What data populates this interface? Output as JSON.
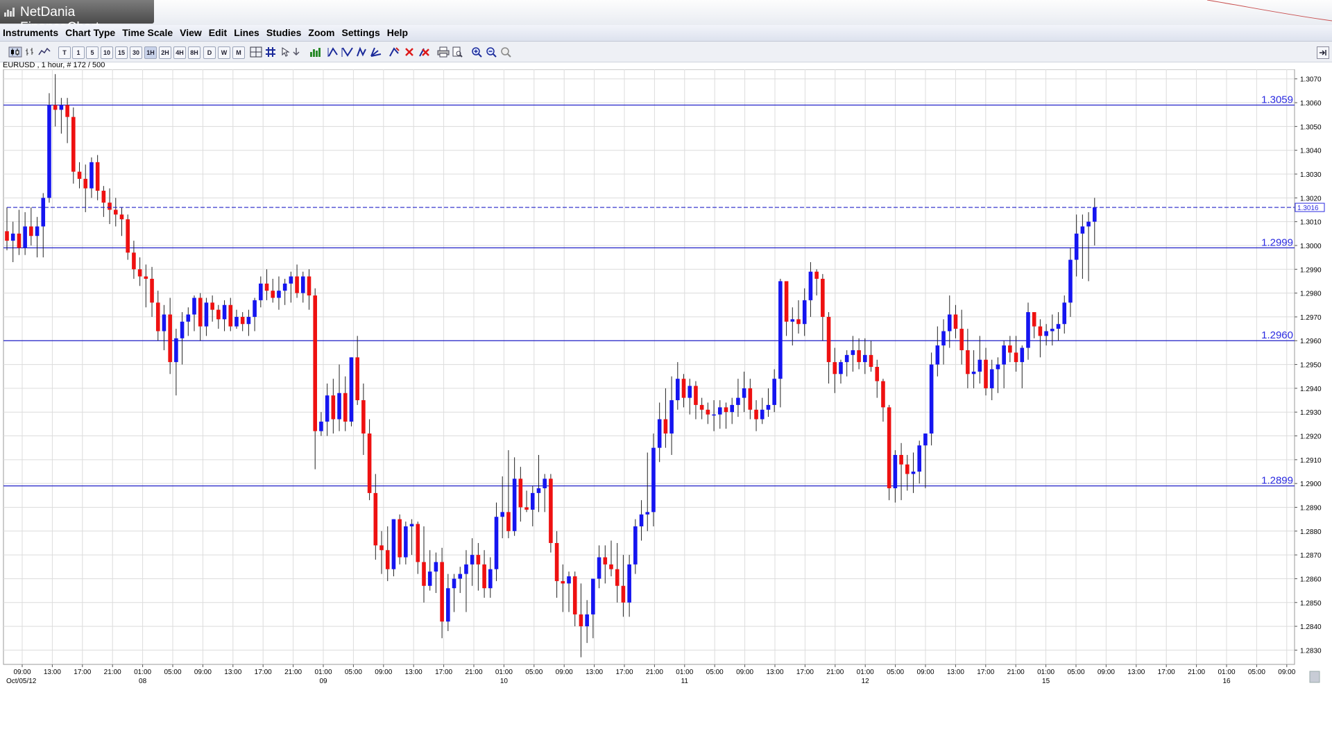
{
  "window": {
    "title": "NetDania FinanceChart"
  },
  "menu": [
    "Instruments",
    "Chart Type",
    "Time Scale",
    "View",
    "Edit",
    "Lines",
    "Studies",
    "Zoom",
    "Settings",
    "Help"
  ],
  "toolbar": {
    "timeframes": [
      "T",
      "1",
      "5",
      "10",
      "15",
      "30",
      "1H",
      "2H",
      "4H",
      "8H",
      "D",
      "W",
      "M"
    ],
    "active_timeframe": "1H"
  },
  "status": "EURUSD , 1 hour, # 172 / 500",
  "colors": {
    "up": "#1515f0",
    "down": "#ee1111",
    "line": "#2020c8",
    "grid": "#dcdcdc"
  },
  "chart_data": {
    "type": "candlestick",
    "symbol": "EURUSD",
    "interval": "1 hour",
    "ylim": [
      1.2824,
      1.3074
    ],
    "yticks": [
      "1.3070",
      "1.3060",
      "1.3050",
      "1.3040",
      "1.3030",
      "1.3020",
      "1.3010",
      "1.3000",
      "1.2990",
      "1.2980",
      "1.2970",
      "1.2960",
      "1.2950",
      "1.2940",
      "1.2930",
      "1.2920",
      "1.2910",
      "1.2900",
      "1.2890",
      "1.2880",
      "1.2870",
      "1.2860",
      "1.2850",
      "1.2840",
      "1.2830"
    ],
    "xticks": [
      "09:00",
      "13:00",
      "17:00",
      "21:00",
      "01:00",
      "05:00",
      "09:00",
      "13:00",
      "17:00",
      "21:00",
      "01:00",
      "05:00",
      "09:00",
      "13:00",
      "17:00",
      "21:00",
      "01:00",
      "05:00",
      "09:00",
      "13:00",
      "17:00",
      "21:00",
      "01:00",
      "05:00",
      "09:00",
      "13:00",
      "17:00",
      "21:00",
      "01:00",
      "05:00",
      "09:00",
      "13:00",
      "17:00",
      "21:00",
      "01:00",
      "05:00",
      "09:00",
      "13:00",
      "17:00",
      "21:00",
      "01:00",
      "05:00",
      "09:00"
    ],
    "date_labels": [
      {
        "text": "Oct/05/12",
        "at": 0
      },
      {
        "text": "08",
        "at": 4
      },
      {
        "text": "09",
        "at": 10
      },
      {
        "text": "10",
        "at": 16
      },
      {
        "text": "11",
        "at": 22
      },
      {
        "text": "12",
        "at": 28
      },
      {
        "text": "15",
        "at": 34
      },
      {
        "text": "16",
        "at": 40
      }
    ],
    "hlines": [
      {
        "value": 1.3059,
        "label": "1.3059"
      },
      {
        "value": 1.2999,
        "label": "1.2999"
      },
      {
        "value": 1.296,
        "label": "1.2960"
      },
      {
        "value": 1.2899,
        "label": "1.2899"
      }
    ],
    "last_price": {
      "value": 1.3016,
      "label": "1.3016"
    },
    "candles_ohlc": [
      [
        1.3006,
        1.3016,
        1.2998,
        1.3002
      ],
      [
        1.3002,
        1.301,
        1.2993,
        1.3005
      ],
      [
        1.3005,
        1.3015,
        1.2996,
        1.2999
      ],
      [
        1.2999,
        1.3014,
        1.2996,
        1.3008
      ],
      [
        1.3008,
        1.3016,
        1.3,
        1.3004
      ],
      [
        1.3004,
        1.3012,
        1.2995,
        1.3008
      ],
      [
        1.3008,
        1.3022,
        1.2995,
        1.302
      ],
      [
        1.302,
        1.3064,
        1.3018,
        1.3059
      ],
      [
        1.3059,
        1.3072,
        1.305,
        1.3057
      ],
      [
        1.3057,
        1.3062,
        1.3047,
        1.3059
      ],
      [
        1.3059,
        1.3062,
        1.3043,
        1.3054
      ],
      [
        1.3054,
        1.3058,
        1.3026,
        1.3031
      ],
      [
        1.3031,
        1.3035,
        1.3024,
        1.3028
      ],
      [
        1.3028,
        1.3034,
        1.3014,
        1.3024
      ],
      [
        1.3024,
        1.3037,
        1.302,
        1.3035
      ],
      [
        1.3035,
        1.3038,
        1.3019,
        1.3023
      ],
      [
        1.3023,
        1.3025,
        1.3012,
        1.3018
      ],
      [
        1.3018,
        1.3024,
        1.3009,
        1.3015
      ],
      [
        1.3015,
        1.302,
        1.3008,
        1.3013
      ],
      [
        1.3013,
        1.3016,
        1.3004,
        1.3011
      ],
      [
        1.3011,
        1.3013,
        1.2994,
        1.2997
      ],
      [
        1.2997,
        1.3002,
        1.2986,
        1.299
      ],
      [
        1.299,
        1.2995,
        1.2983,
        1.2987
      ],
      [
        1.2987,
        1.2992,
        1.2974,
        1.2986
      ],
      [
        1.2986,
        1.2991,
        1.297,
        1.2976
      ],
      [
        1.2976,
        1.2981,
        1.296,
        1.2964
      ],
      [
        1.2964,
        1.2975,
        1.2956,
        1.2971
      ],
      [
        1.2971,
        1.2978,
        1.2946,
        1.2951
      ],
      [
        1.2951,
        1.2965,
        1.2937,
        1.2961
      ],
      [
        1.2961,
        1.2972,
        1.295,
        1.2968
      ],
      [
        1.2968,
        1.2974,
        1.2962,
        1.2971
      ],
      [
        1.2971,
        1.2979,
        1.2964,
        1.2978
      ],
      [
        1.2978,
        1.298,
        1.296,
        1.2966
      ],
      [
        1.2966,
        1.2978,
        1.2962,
        1.2976
      ],
      [
        1.2976,
        1.2979,
        1.2968,
        1.2973
      ],
      [
        1.2973,
        1.2975,
        1.2965,
        1.2969
      ],
      [
        1.2969,
        1.2977,
        1.2964,
        1.2975
      ],
      [
        1.2975,
        1.2978,
        1.2964,
        1.2966
      ],
      [
        1.2966,
        1.2973,
        1.2965,
        1.297
      ],
      [
        1.297,
        1.2972,
        1.2964,
        1.2967
      ],
      [
        1.2967,
        1.2973,
        1.2962,
        1.297
      ],
      [
        1.297,
        1.2978,
        1.2964,
        1.2977
      ],
      [
        1.2977,
        1.2987,
        1.2974,
        1.2984
      ],
      [
        1.2984,
        1.299,
        1.2977,
        1.2981
      ],
      [
        1.2981,
        1.2986,
        1.2976,
        1.2978
      ],
      [
        1.2978,
        1.2987,
        1.2973,
        1.2981
      ],
      [
        1.2981,
        1.2986,
        1.2975,
        1.2984
      ],
      [
        1.2984,
        1.2989,
        1.2976,
        1.2987
      ],
      [
        1.2987,
        1.2992,
        1.2978,
        1.298
      ],
      [
        1.298,
        1.2989,
        1.2976,
        1.2987
      ],
      [
        1.2987,
        1.299,
        1.2973,
        1.2979
      ],
      [
        1.2979,
        1.2982,
        1.2906,
        1.2922
      ],
      [
        1.2922,
        1.293,
        1.292,
        1.2926
      ],
      [
        1.2926,
        1.2942,
        1.292,
        1.2937
      ],
      [
        1.2937,
        1.2944,
        1.2921,
        1.2927
      ],
      [
        1.2927,
        1.295,
        1.2922,
        1.2938
      ],
      [
        1.2938,
        1.2945,
        1.2922,
        1.2926
      ],
      [
        1.2926,
        1.2953,
        1.2924,
        1.2953
      ],
      [
        1.2953,
        1.2962,
        1.2933,
        1.2935
      ],
      [
        1.2935,
        1.2942,
        1.2912,
        1.2921
      ],
      [
        1.2921,
        1.2927,
        1.2893,
        1.2896
      ],
      [
        1.2896,
        1.2904,
        1.2868,
        1.2874
      ],
      [
        1.2874,
        1.288,
        1.2862,
        1.2872
      ],
      [
        1.2872,
        1.2882,
        1.2859,
        1.2864
      ],
      [
        1.2864,
        1.2885,
        1.2861,
        1.2885
      ],
      [
        1.2885,
        1.2887,
        1.2866,
        1.2869
      ],
      [
        1.2869,
        1.2884,
        1.2866,
        1.2882
      ],
      [
        1.2882,
        1.2885,
        1.287,
        1.2883
      ],
      [
        1.2883,
        1.2884,
        1.2862,
        1.2867
      ],
      [
        1.2867,
        1.2882,
        1.285,
        1.2857
      ],
      [
        1.2857,
        1.2872,
        1.2855,
        1.2863
      ],
      [
        1.2863,
        1.2871,
        1.2854,
        1.2867
      ],
      [
        1.2867,
        1.2873,
        1.2835,
        1.2842
      ],
      [
        1.2842,
        1.2862,
        1.2838,
        1.2856
      ],
      [
        1.2856,
        1.2862,
        1.2846,
        1.286
      ],
      [
        1.286,
        1.2865,
        1.2854,
        1.2862
      ],
      [
        1.2862,
        1.2872,
        1.2846,
        1.2866
      ],
      [
        1.2866,
        1.2877,
        1.2857,
        1.287
      ],
      [
        1.287,
        1.2875,
        1.2855,
        1.2866
      ],
      [
        1.2866,
        1.2872,
        1.2852,
        1.2856
      ],
      [
        1.2856,
        1.2869,
        1.2852,
        1.2864
      ],
      [
        1.2864,
        1.2892,
        1.2859,
        1.2886
      ],
      [
        1.2886,
        1.2903,
        1.2877,
        1.2888
      ],
      [
        1.2888,
        1.2914,
        1.2877,
        1.288
      ],
      [
        1.288,
        1.2911,
        1.2878,
        1.2902
      ],
      [
        1.2902,
        1.2907,
        1.2884,
        1.289
      ],
      [
        1.289,
        1.2897,
        1.2888,
        1.2889
      ],
      [
        1.2889,
        1.2899,
        1.2882,
        1.2896
      ],
      [
        1.2896,
        1.2912,
        1.2888,
        1.2898
      ],
      [
        1.2898,
        1.2904,
        1.2888,
        1.2902
      ],
      [
        1.2902,
        1.2904,
        1.2871,
        1.2875
      ],
      [
        1.2875,
        1.288,
        1.2852,
        1.2859
      ],
      [
        1.2859,
        1.2866,
        1.2846,
        1.2858
      ],
      [
        1.2858,
        1.2863,
        1.2846,
        1.2861
      ],
      [
        1.2861,
        1.2863,
        1.284,
        1.2845
      ],
      [
        1.2845,
        1.2858,
        1.2827,
        1.284
      ],
      [
        1.284,
        1.2851,
        1.2833,
        1.2845
      ],
      [
        1.2845,
        1.2858,
        1.2835,
        1.286
      ],
      [
        1.286,
        1.2874,
        1.2856,
        1.2869
      ],
      [
        1.2869,
        1.2874,
        1.2858,
        1.2866
      ],
      [
        1.2866,
        1.2876,
        1.2861,
        1.2864
      ],
      [
        1.2864,
        1.2875,
        1.285,
        1.2857
      ],
      [
        1.2857,
        1.287,
        1.2844,
        1.285
      ],
      [
        1.285,
        1.287,
        1.2844,
        1.2866
      ],
      [
        1.2866,
        1.2885,
        1.2862,
        1.2882
      ],
      [
        1.2882,
        1.2893,
        1.2876,
        1.2887
      ],
      [
        1.2887,
        1.2913,
        1.288,
        1.2888
      ],
      [
        1.2888,
        1.2921,
        1.2882,
        1.2915
      ],
      [
        1.2915,
        1.2934,
        1.2909,
        1.2927
      ],
      [
        1.2927,
        1.294,
        1.2915,
        1.2921
      ],
      [
        1.2921,
        1.2945,
        1.2912,
        1.2935
      ],
      [
        1.2935,
        1.2951,
        1.2931,
        1.2944
      ],
      [
        1.2944,
        1.2946,
        1.2932,
        1.2936
      ],
      [
        1.2936,
        1.2944,
        1.2929,
        1.2941
      ],
      [
        1.2941,
        1.2943,
        1.2927,
        1.2933
      ],
      [
        1.2933,
        1.2936,
        1.2927,
        1.2931
      ],
      [
        1.2931,
        1.2934,
        1.2925,
        1.2929
      ],
      [
        1.2929,
        1.2935,
        1.2922,
        1.2929
      ],
      [
        1.2929,
        1.2935,
        1.2923,
        1.2932
      ],
      [
        1.2932,
        1.2934,
        1.2923,
        1.293
      ],
      [
        1.293,
        1.2936,
        1.2925,
        1.2933
      ],
      [
        1.2933,
        1.2944,
        1.2928,
        1.2936
      ],
      [
        1.2936,
        1.2947,
        1.293,
        1.294
      ],
      [
        1.294,
        1.2944,
        1.2927,
        1.2931
      ],
      [
        1.2931,
        1.2935,
        1.2922,
        1.2927
      ],
      [
        1.2927,
        1.2936,
        1.2925,
        1.2931
      ],
      [
        1.2931,
        1.294,
        1.2928,
        1.2933
      ],
      [
        1.2933,
        1.2948,
        1.293,
        1.2944
      ],
      [
        1.2944,
        1.2986,
        1.2932,
        1.2985
      ],
      [
        1.2985,
        1.2984,
        1.2962,
        1.2968
      ],
      [
        1.2968,
        1.2974,
        1.2958,
        1.2969
      ],
      [
        1.2969,
        1.2977,
        1.2963,
        1.2967
      ],
      [
        1.2967,
        1.2982,
        1.2962,
        1.2977
      ],
      [
        1.2977,
        1.2993,
        1.297,
        1.2989
      ],
      [
        1.2989,
        1.299,
        1.2979,
        1.2986
      ],
      [
        1.2986,
        1.2988,
        1.296,
        1.297
      ],
      [
        1.297,
        1.2972,
        1.2942,
        1.2951
      ],
      [
        1.2951,
        1.2957,
        1.2938,
        1.2946
      ],
      [
        1.2946,
        1.2952,
        1.2942,
        1.2951
      ],
      [
        1.2951,
        1.2956,
        1.2945,
        1.2954
      ],
      [
        1.2954,
        1.2962,
        1.2947,
        1.2956
      ],
      [
        1.2956,
        1.2961,
        1.2948,
        1.2951
      ],
      [
        1.2951,
        1.2961,
        1.2946,
        1.2954
      ],
      [
        1.2954,
        1.296,
        1.2947,
        1.2949
      ],
      [
        1.2949,
        1.2952,
        1.2936,
        1.2943
      ],
      [
        1.2943,
        1.2944,
        1.2926,
        1.2932
      ],
      [
        1.2932,
        1.2933,
        1.2893,
        1.2898
      ],
      [
        1.2898,
        1.2914,
        1.2892,
        1.2912
      ],
      [
        1.2912,
        1.2917,
        1.2893,
        1.2908
      ],
      [
        1.2908,
        1.2912,
        1.2897,
        1.2904
      ],
      [
        1.2904,
        1.2913,
        1.2896,
        1.2905
      ],
      [
        1.2905,
        1.2918,
        1.29,
        1.2916
      ],
      [
        1.2916,
        1.292,
        1.2898,
        1.2921
      ],
      [
        1.2921,
        1.2955,
        1.2916,
        1.295
      ],
      [
        1.295,
        1.2966,
        1.2945,
        1.2958
      ],
      [
        1.2958,
        1.2969,
        1.295,
        1.2964
      ],
      [
        1.2964,
        1.2979,
        1.2957,
        1.2971
      ],
      [
        1.2971,
        1.2975,
        1.2961,
        1.2965
      ],
      [
        1.2965,
        1.2973,
        1.295,
        1.2956
      ],
      [
        1.2956,
        1.2965,
        1.294,
        1.2946
      ],
      [
        1.2946,
        1.2956,
        1.294,
        1.2947
      ],
      [
        1.2947,
        1.2962,
        1.2942,
        1.2952
      ],
      [
        1.2952,
        1.2957,
        1.2937,
        1.294
      ],
      [
        1.294,
        1.2952,
        1.2935,
        1.2948
      ],
      [
        1.2948,
        1.2953,
        1.2938,
        1.295
      ],
      [
        1.295,
        1.296,
        1.294,
        1.2958
      ],
      [
        1.2958,
        1.2962,
        1.2951,
        1.2955
      ],
      [
        1.2955,
        1.2962,
        1.2947,
        1.2951
      ],
      [
        1.2951,
        1.2958,
        1.294,
        1.2957
      ],
      [
        1.2957,
        1.2976,
        1.2952,
        1.2972
      ],
      [
        1.2972,
        1.297,
        1.2961,
        1.2966
      ],
      [
        1.2966,
        1.2969,
        1.2953,
        1.2962
      ],
      [
        1.2962,
        1.2967,
        1.2958,
        1.2964
      ],
      [
        1.2964,
        1.2971,
        1.2958,
        1.2965
      ],
      [
        1.2965,
        1.2972,
        1.296,
        1.2967
      ],
      [
        1.2967,
        1.2979,
        1.2963,
        1.2976
      ],
      [
        1.2976,
        1.2999,
        1.297,
        1.2994
      ],
      [
        1.2994,
        1.3013,
        1.2987,
        1.3005
      ],
      [
        1.3005,
        1.3013,
        1.2986,
        1.3008
      ],
      [
        1.3008,
        1.3014,
        1.2985,
        1.301
      ],
      [
        1.301,
        1.302,
        1.3,
        1.3016
      ]
    ]
  }
}
